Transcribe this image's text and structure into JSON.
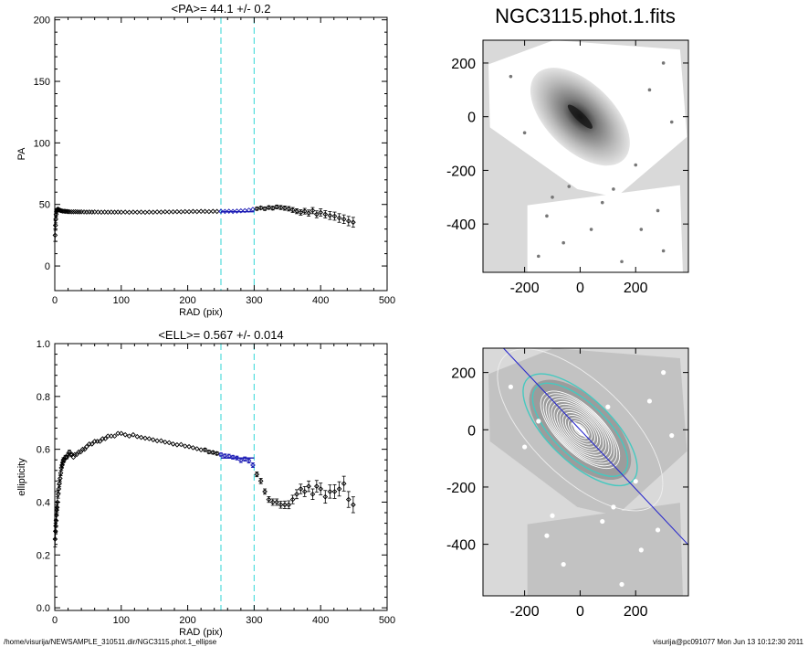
{
  "footer": {
    "path": "/home/visurija/NEWSAMPLE_310511.dir/NGC3115.phot.1_ellipse",
    "stamp": "visurija@pc091077  Mon Jun 13 10:12:30 2011"
  },
  "image_title": "NGC3115.phot.1.fits",
  "colors": {
    "points": "#000000",
    "fit": "#1a1ab4",
    "fit_window": "#55dddd",
    "isophotes": "#ffffff",
    "isophote_fit": "#45c9c0",
    "major_axis": "#2a2acc",
    "image_background": "#d9d9d9",
    "galaxy_core": "#000000"
  },
  "chart_data": [
    {
      "name": "pa-profile",
      "type": "scatter",
      "title": "<PA>=  44.1 +/-   0.2",
      "xlabel": "RAD (pix)",
      "ylabel": "PA",
      "xlim": [
        0,
        500
      ],
      "ylim": [
        -20,
        202
      ],
      "xticks": [
        0,
        100,
        200,
        300,
        400,
        500
      ],
      "yticks": [
        0,
        50,
        100,
        150,
        200
      ],
      "fit_window": [
        250,
        300
      ],
      "mean": 44.1,
      "mean_err": 0.2,
      "series": [
        {
          "x": [
            0.5,
            1,
            1.5,
            2,
            2.5,
            3,
            4,
            5,
            6,
            7,
            8,
            9,
            10,
            12,
            14,
            16,
            18,
            20,
            22,
            25,
            28,
            31,
            34,
            37,
            40,
            44,
            48,
            52,
            56,
            60,
            65,
            70,
            75,
            80,
            85,
            90,
            95,
            100,
            106,
            112,
            118,
            124,
            130,
            136,
            142,
            148,
            154,
            160,
            166,
            172,
            178,
            184,
            190,
            196,
            202,
            208,
            214,
            220,
            226,
            232,
            238,
            244,
            250,
            256,
            262,
            268,
            274,
            280,
            286,
            292,
            298,
            304,
            310,
            316,
            322,
            328,
            334,
            340,
            346,
            352,
            358,
            364,
            370,
            376,
            382,
            388,
            394,
            400,
            407,
            414,
            421,
            428,
            435,
            442,
            449
          ],
          "y": [
            25,
            33,
            38,
            42,
            44,
            45.5,
            46,
            46.2,
            45.8,
            45.5,
            45.2,
            45,
            44.8,
            44.6,
            44.5,
            44.4,
            44.3,
            44.2,
            44.1,
            44.0,
            44.0,
            44.1,
            44.0,
            43.9,
            44.0,
            43.9,
            43.8,
            43.9,
            43.8,
            43.9,
            43.8,
            43.7,
            43.8,
            43.7,
            43.8,
            43.7,
            43.8,
            43.7,
            43.8,
            43.6,
            43.8,
            43.7,
            43.8,
            43.6,
            43.8,
            43.7,
            43.9,
            43.8,
            44.0,
            43.9,
            44.0,
            44.1,
            44.0,
            44.2,
            44.1,
            44.3,
            44.2,
            44.4,
            44.3,
            44.2,
            44.4,
            44.3,
            44.4,
            44.3,
            44.5,
            44.3,
            44.6,
            44.8,
            45.0,
            45.4,
            46,
            46.5,
            47.2,
            46.5,
            47.5,
            47.0,
            48.0,
            47.5,
            47.0,
            46.5,
            45.5,
            44.5,
            43.5,
            44.5,
            43.0,
            45.0,
            42.0,
            43.5,
            42.0,
            41.0,
            40.5,
            39.0,
            38.0,
            36.5,
            35.5
          ],
          "err": [
            5,
            4,
            3,
            2,
            1.5,
            1.2,
            1,
            1,
            0.8,
            0.8,
            0.7,
            0.7,
            0.6,
            0.6,
            0.6,
            0.5,
            0.5,
            0.5,
            0.5,
            0.5,
            0.5,
            0.5,
            0.5,
            0.5,
            0.5,
            0.5,
            0.5,
            0.5,
            0.5,
            0.5,
            0.5,
            0.5,
            0.5,
            0.5,
            0.5,
            0.5,
            0.5,
            0.5,
            0.5,
            0.5,
            0.5,
            0.5,
            0.5,
            0.5,
            0.5,
            0.5,
            0.5,
            0.5,
            0.5,
            0.5,
            0.5,
            0.5,
            0.5,
            0.6,
            0.6,
            0.6,
            0.6,
            0.6,
            0.6,
            0.7,
            0.7,
            0.7,
            0.7,
            0.7,
            0.8,
            0.8,
            0.8,
            0.9,
            0.9,
            1,
            1,
            1.2,
            1.2,
            1.3,
            1.4,
            1.5,
            1.5,
            1.6,
            1.7,
            1.8,
            2,
            2,
            2.2,
            2.3,
            2.5,
            2.5,
            2.8,
            3,
            3,
            3.2,
            3.3,
            3.5,
            3.5,
            3.8,
            4
          ]
        }
      ]
    },
    {
      "name": "ellipticity-profile",
      "type": "scatter",
      "title": "<ELL>= 0.567 +/-  0.014",
      "xlabel": "RAD (pix)",
      "ylabel": "ellipticity",
      "xlim": [
        0,
        500
      ],
      "ylim": [
        -0.01,
        1.0
      ],
      "xticks": [
        0,
        100,
        200,
        300,
        400,
        500
      ],
      "yticks": [
        0.0,
        0.2,
        0.4,
        0.6,
        0.8,
        1.0
      ],
      "ytick_labels": [
        "0.0",
        "0.2",
        "0.4",
        "0.6",
        "0.8",
        "1.0"
      ],
      "fit_window": [
        250,
        300
      ],
      "mean": 0.567,
      "mean_err": 0.014,
      "series": [
        {
          "x": [
            0.5,
            1,
            1.5,
            2,
            2.5,
            3,
            3.5,
            4,
            5,
            6,
            7,
            8,
            9,
            10,
            11,
            12,
            13,
            14,
            16,
            18,
            20,
            22,
            24,
            26,
            28,
            30,
            33,
            36,
            39,
            42,
            45,
            48,
            52,
            56,
            60,
            64,
            68,
            72,
            76,
            80,
            85,
            90,
            95,
            100,
            106,
            112,
            118,
            124,
            130,
            136,
            142,
            148,
            154,
            160,
            166,
            172,
            178,
            184,
            190,
            196,
            202,
            208,
            214,
            220,
            226,
            232,
            238,
            244,
            250,
            256,
            262,
            268,
            274,
            280,
            286,
            292,
            298,
            304,
            310,
            316,
            322,
            328,
            334,
            340,
            346,
            352,
            358,
            364,
            370,
            376,
            382,
            388,
            394,
            400,
            407,
            414,
            421,
            428,
            435,
            442,
            449
          ],
          "y": [
            0.26,
            0.29,
            0.31,
            0.33,
            0.35,
            0.37,
            0.38,
            0.4,
            0.43,
            0.45,
            0.47,
            0.49,
            0.51,
            0.53,
            0.54,
            0.55,
            0.56,
            0.56,
            0.57,
            0.57,
            0.58,
            0.59,
            0.58,
            0.58,
            0.57,
            0.58,
            0.58,
            0.59,
            0.59,
            0.6,
            0.6,
            0.61,
            0.62,
            0.62,
            0.63,
            0.63,
            0.63,
            0.64,
            0.64,
            0.65,
            0.65,
            0.65,
            0.66,
            0.66,
            0.655,
            0.65,
            0.655,
            0.648,
            0.645,
            0.642,
            0.64,
            0.636,
            0.632,
            0.632,
            0.627,
            0.625,
            0.62,
            0.617,
            0.618,
            0.612,
            0.61,
            0.606,
            0.602,
            0.598,
            0.598,
            0.59,
            0.588,
            0.584,
            0.58,
            0.575,
            0.574,
            0.57,
            0.567,
            0.558,
            0.563,
            0.556,
            0.54,
            0.505,
            0.48,
            0.44,
            0.41,
            0.4,
            0.4,
            0.39,
            0.39,
            0.39,
            0.41,
            0.43,
            0.45,
            0.44,
            0.46,
            0.43,
            0.46,
            0.45,
            0.42,
            0.44,
            0.44,
            0.45,
            0.47,
            0.41,
            0.39
          ],
          "err": [
            0.03,
            0.03,
            0.025,
            0.025,
            0.02,
            0.02,
            0.02,
            0.02,
            0.015,
            0.015,
            0.012,
            0.012,
            0.01,
            0.01,
            0.01,
            0.008,
            0.008,
            0.008,
            0.007,
            0.006,
            0.006,
            0.006,
            0.005,
            0.005,
            0.005,
            0.005,
            0.005,
            0.005,
            0.005,
            0.004,
            0.004,
            0.004,
            0.004,
            0.004,
            0.004,
            0.004,
            0.004,
            0.004,
            0.004,
            0.004,
            0.004,
            0.004,
            0.004,
            0.004,
            0.004,
            0.004,
            0.004,
            0.004,
            0.004,
            0.004,
            0.004,
            0.004,
            0.004,
            0.004,
            0.004,
            0.004,
            0.005,
            0.005,
            0.005,
            0.005,
            0.005,
            0.005,
            0.005,
            0.005,
            0.006,
            0.006,
            0.006,
            0.006,
            0.006,
            0.007,
            0.007,
            0.007,
            0.007,
            0.008,
            0.008,
            0.008,
            0.009,
            0.009,
            0.01,
            0.01,
            0.011,
            0.012,
            0.012,
            0.013,
            0.014,
            0.015,
            0.016,
            0.017,
            0.018,
            0.019,
            0.02,
            0.02,
            0.022,
            0.022,
            0.024,
            0.025,
            0.026,
            0.027,
            0.028,
            0.03,
            0.03
          ]
        }
      ]
    },
    {
      "name": "galaxy-image",
      "type": "image",
      "title": "NGC3115.phot.1.fits",
      "xlim": [
        -350,
        390
      ],
      "ylim": [
        -580,
        285
      ],
      "xticks": [
        -200,
        0,
        200
      ],
      "yticks": [
        200,
        0,
        -200,
        -400
      ],
      "position_angle_deg": 44.1,
      "ellipticity": 0.567
    },
    {
      "name": "isophote-overlay",
      "type": "image",
      "title": "",
      "xlim": [
        -350,
        390
      ],
      "ylim": [
        -580,
        285
      ],
      "xticks": [
        -200,
        0,
        200
      ],
      "yticks": [
        200,
        0,
        -200,
        -400
      ],
      "position_angle_deg": 44.1,
      "ellipticity": 0.567,
      "fit_window": [
        250,
        300
      ]
    }
  ]
}
